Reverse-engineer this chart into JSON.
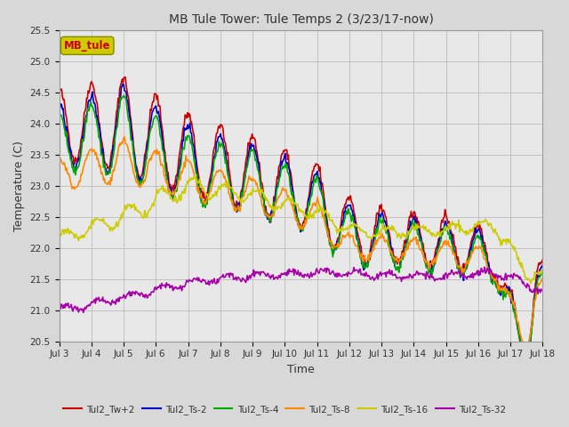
{
  "title": "MB Tule Tower: Tule Temps 2 (3/23/17-now)",
  "xlabel": "Time",
  "ylabel": "Temperature (C)",
  "ylim": [
    20.5,
    25.5
  ],
  "xlim": [
    0,
    15
  ],
  "xtick_labels": [
    "Jul 3",
    "Jul 4",
    "Jul 5",
    "Jul 6",
    "Jul 7",
    "Jul 8",
    "Jul 9",
    "Jul 10",
    "Jul 11",
    "Jul 12",
    "Jul 13",
    "Jul 14",
    "Jul 15",
    "Jul 16",
    "Jul 17",
    "Jul 18"
  ],
  "background_color": "#d8d8d8",
  "plot_bg": "#e8e8e8",
  "legend_label": "MB_tule",
  "series": {
    "Tul2_Tw+2": {
      "color": "#cc0000",
      "lw": 1.2
    },
    "Tul2_Ts-2": {
      "color": "#0000cc",
      "lw": 1.2
    },
    "Tul2_Ts-4": {
      "color": "#00aa00",
      "lw": 1.2
    },
    "Tul2_Ts-8": {
      "color": "#ff8800",
      "lw": 1.2
    },
    "Tul2_Ts-16": {
      "color": "#cccc00",
      "lw": 1.2
    },
    "Tul2_Ts-32": {
      "color": "#aa00aa",
      "lw": 1.2
    }
  }
}
